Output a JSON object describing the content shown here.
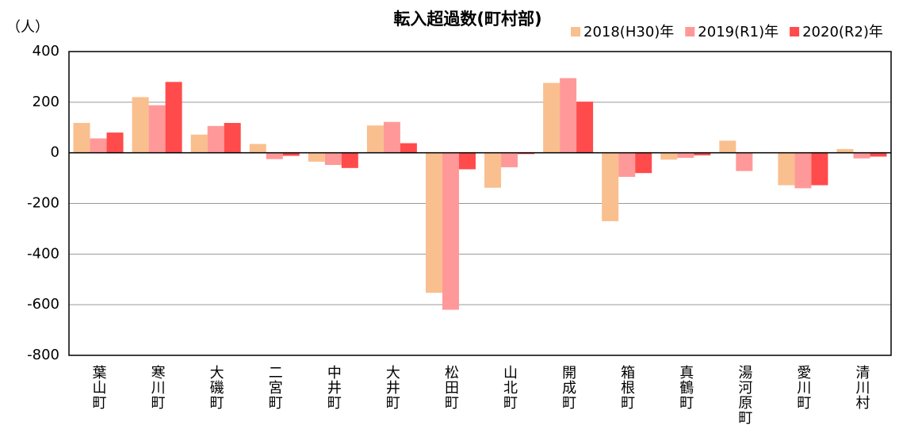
{
  "chart_data": {
    "type": "bar",
    "title": "転入超過数(町村部)",
    "y_label": "（人）",
    "categories": [
      "葉山町",
      "寒川町",
      "大磯町",
      "二宮町",
      "中井町",
      "大井町",
      "松田町",
      "山北町",
      "開成町",
      "箱根町",
      "真鶴町",
      "湯河原町",
      "愛川町",
      "清川村"
    ],
    "series": [
      {
        "name": "2018(H30)年",
        "color": "#f9bf8f",
        "values": [
          118,
          220,
          72,
          35,
          -35,
          108,
          -553,
          -138,
          276,
          -270,
          -27,
          48,
          -128,
          15
        ]
      },
      {
        "name": "2019(R1)年",
        "color": "#ff9999",
        "values": [
          57,
          188,
          106,
          -25,
          -48,
          122,
          -620,
          -57,
          295,
          -95,
          -20,
          -72,
          -140,
          -22
        ]
      },
      {
        "name": "2020(R2)年",
        "color": "#ff4b4b",
        "values": [
          80,
          280,
          118,
          -12,
          -60,
          38,
          -65,
          -5,
          202,
          -80,
          -10,
          0,
          -128,
          -15
        ]
      }
    ],
    "ylim": [
      -800,
      400
    ],
    "yticks": [
      -800,
      -600,
      -400,
      -200,
      0,
      200,
      400
    ],
    "grid": true,
    "legend": "top-right"
  }
}
